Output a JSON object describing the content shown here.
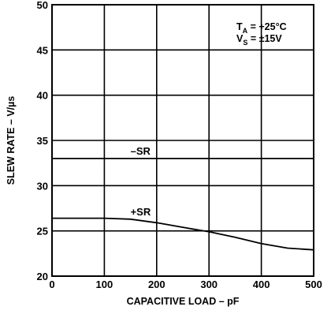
{
  "chart_data": {
    "type": "line",
    "xlabel": "CAPACITIVE LOAD – pF",
    "ylabel": "SLEW RATE – V/µs",
    "xlim": [
      0,
      500
    ],
    "ylim": [
      20,
      50
    ],
    "x_ticks": [
      "0",
      "100",
      "200",
      "300",
      "400",
      "500"
    ],
    "y_ticks": [
      "20",
      "25",
      "30",
      "35",
      "40",
      "45",
      "50"
    ],
    "grid": true,
    "conditions": [
      {
        "sym": "T",
        "sub": "A",
        "text": " = +25°C"
      },
      {
        "sym": "V",
        "sub": "S",
        "text": " = ±15V"
      }
    ],
    "series": [
      {
        "name": "–SR",
        "x": [
          0,
          100,
          200,
          300,
          400,
          500
        ],
        "y": [
          33,
          33,
          33,
          33,
          33,
          33
        ]
      },
      {
        "name": "+SR",
        "x": [
          0,
          100,
          150,
          200,
          250,
          300,
          350,
          400,
          450,
          500
        ],
        "y": [
          26.4,
          26.4,
          26.3,
          25.9,
          25.4,
          24.9,
          24.3,
          23.6,
          23.1,
          22.9
        ]
      }
    ]
  }
}
